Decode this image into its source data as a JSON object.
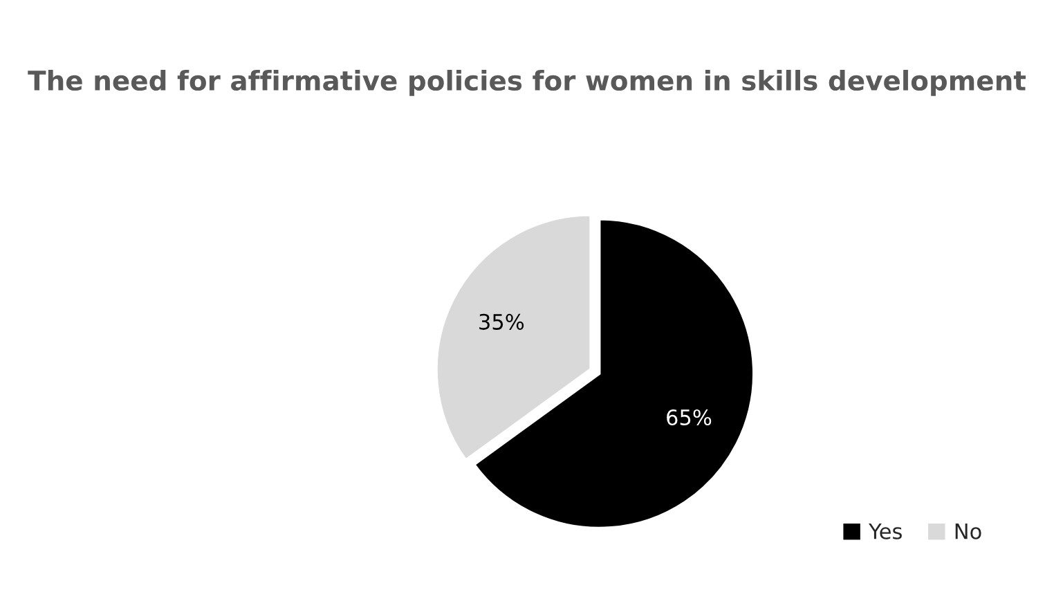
{
  "chart_data": {
    "type": "pie",
    "title": "The need for affirmative policies for women in skills development",
    "categories": [
      "Yes",
      "No"
    ],
    "values": [
      65,
      35
    ],
    "colors": [
      "#000000",
      "#d9d9d9"
    ],
    "value_labels": [
      "65%",
      "35%"
    ],
    "legend": "bottom right"
  }
}
